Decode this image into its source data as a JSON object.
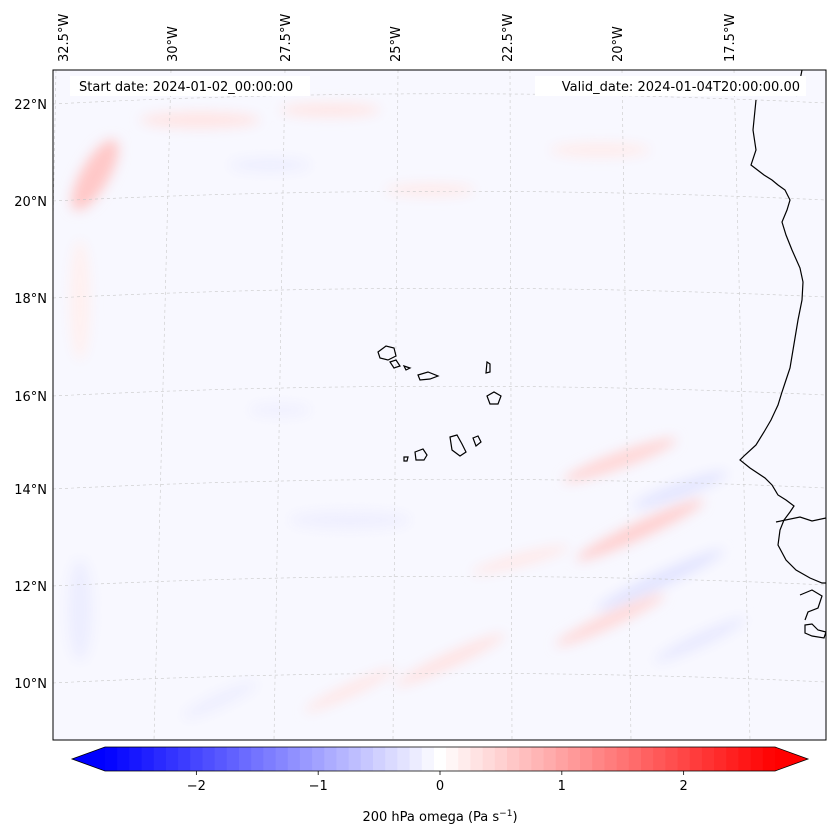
{
  "map": {
    "start_date": "Start date: 2024-01-02_00:00:00",
    "valid_date": "Valid_date: 2024-01-04T20:00:00.00",
    "lon_labels": [
      "32.5°W",
      "30°W",
      "27.5°W",
      "25°W",
      "22.5°W",
      "20°W",
      "17.5°W"
    ],
    "lat_labels": [
      "22°N",
      "20°N",
      "18°N",
      "16°N",
      "14°N",
      "12°N",
      "10°N"
    ],
    "coast_color": "#000000",
    "grid": true
  },
  "colorbar": {
    "label": "200 hPa omega (Pa s",
    "label_sup": "−1",
    "label_end": ")",
    "ticks": [
      "−2",
      "−1",
      "0",
      "1",
      "2"
    ],
    "tick_values": [
      -2,
      -1,
      0,
      1,
      2
    ],
    "range": [
      -2.75,
      2.75
    ],
    "cmap": "bwr",
    "color_low": "#0000ff",
    "color_mid": "#ffffff",
    "color_high": "#ff0000",
    "extend": "both"
  }
}
